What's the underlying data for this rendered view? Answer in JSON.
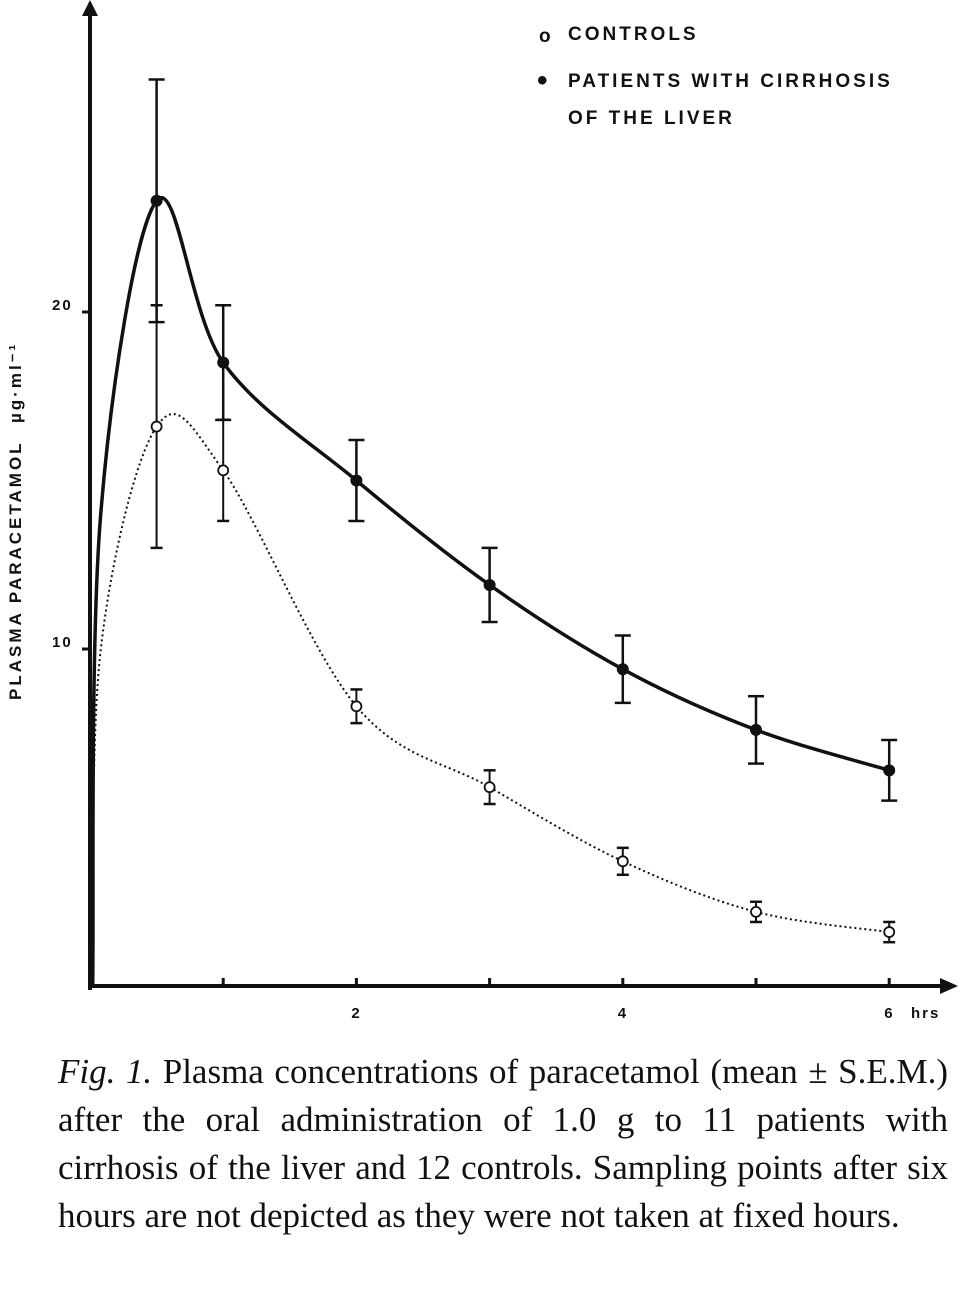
{
  "chart_data": {
    "type": "line",
    "ylabel": "PLASMA PARACETAMOL",
    "yunit": "µg·ml⁻¹",
    "x_unit_label": "hrs",
    "xlim": [
      0,
      6.5
    ],
    "ylim": [
      0,
      30
    ],
    "x_ticks": [
      1,
      2,
      3,
      4,
      5,
      6
    ],
    "x_tick_labels": [
      {
        "x": 2,
        "text": "2"
      },
      {
        "x": 4,
        "text": "4"
      },
      {
        "x": 6,
        "text": "6"
      }
    ],
    "y_ticks": [
      10,
      20
    ],
    "y_tick_labels": [
      {
        "y": 10,
        "text": "10"
      },
      {
        "y": 20,
        "text": "20"
      }
    ],
    "grid": false,
    "legend_position": "top-right",
    "legend": {
      "controls_marker": "o",
      "controls_label": "CONTROLS",
      "patients_marker": "•",
      "patients_label_line1": "PATIENTS WITH CIRRHOSIS",
      "patients_label_line2": "OF THE LIVER"
    },
    "series": [
      {
        "name": "PATIENTS WITH CIRRHOSIS OF THE LIVER",
        "marker": "filled-circle",
        "line_style": "solid",
        "color": "#111111",
        "x": [
          0.5,
          1,
          2,
          3,
          4,
          5,
          6
        ],
        "y": [
          23.3,
          18.5,
          15.0,
          11.9,
          9.4,
          7.6,
          6.4
        ],
        "err": [
          3.6,
          1.7,
          1.2,
          1.1,
          1.0,
          1.0,
          0.9
        ]
      },
      {
        "name": "CONTROLS",
        "marker": "open-circle",
        "line_style": "dotted",
        "color": "#111111",
        "x": [
          0.5,
          1,
          2,
          3,
          4,
          5,
          6
        ],
        "y": [
          16.6,
          15.3,
          8.3,
          5.9,
          3.7,
          2.2,
          1.6
        ],
        "err": [
          3.6,
          1.5,
          0.5,
          0.5,
          0.4,
          0.3,
          0.3
        ]
      }
    ]
  },
  "caption": {
    "fig_label": "Fig. 1.",
    "text": " Plasma concentrations of paracetamol (mean ± S.E.M.) after the oral administration of 1.0 g to 11 patients with cirrhosis of the liver and 12 controls. Sampling points after six hours are not depicted as they were not taken at fixed hours."
  }
}
